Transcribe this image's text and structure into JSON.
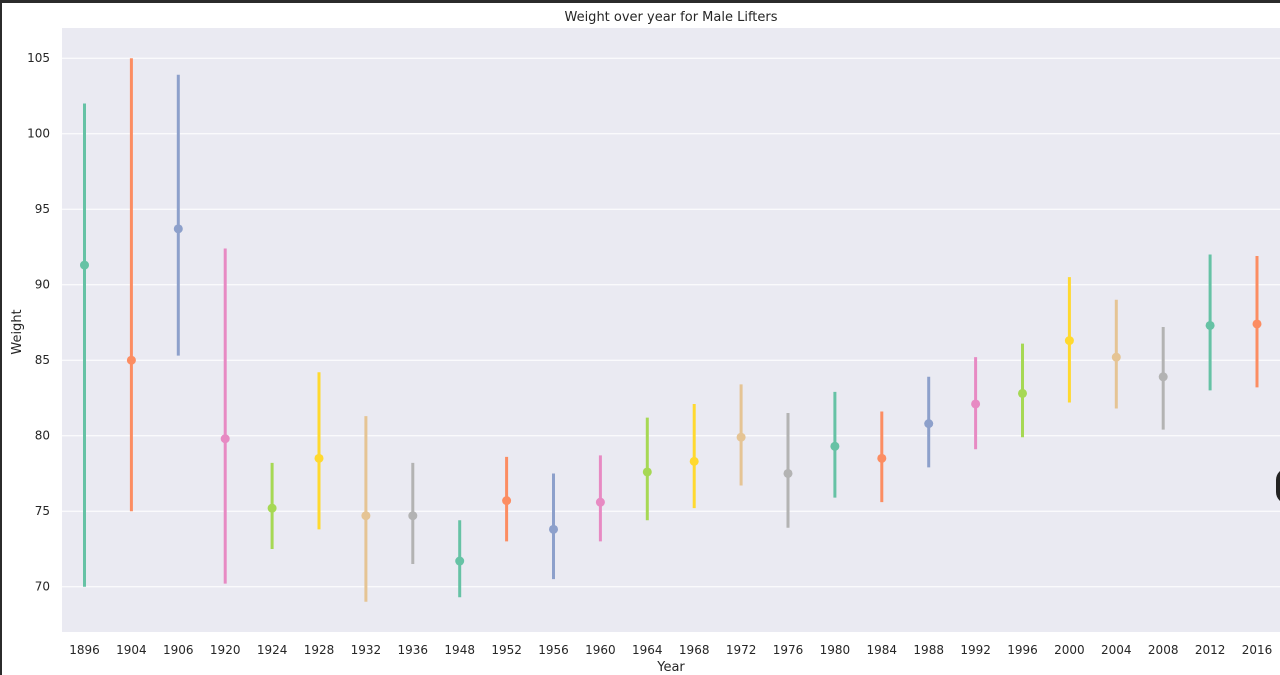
{
  "chart_data": {
    "type": "point",
    "title": "Weight over year for Male Lifters",
    "xlabel": "Year",
    "ylabel": "Weight",
    "ylim": [
      67,
      107
    ],
    "yticks": [
      70,
      75,
      80,
      85,
      90,
      95,
      100,
      105
    ],
    "grid": true,
    "categories": [
      "1896",
      "1904",
      "1906",
      "1920",
      "1924",
      "1928",
      "1932",
      "1936",
      "1948",
      "1952",
      "1956",
      "1960",
      "1964",
      "1968",
      "1972",
      "1976",
      "1980",
      "1984",
      "1988",
      "1992",
      "1996",
      "2000",
      "2004",
      "2008",
      "2012",
      "2016"
    ],
    "points": [
      {
        "year": "1896",
        "mean": 91.3,
        "low": 70.0,
        "high": 102.0,
        "color": "#66c2a5"
      },
      {
        "year": "1904",
        "mean": 85.0,
        "low": 75.0,
        "high": 105.0,
        "color": "#fc8d62"
      },
      {
        "year": "1906",
        "mean": 93.7,
        "low": 85.3,
        "high": 103.9,
        "color": "#8da0cb"
      },
      {
        "year": "1920",
        "mean": 79.8,
        "low": 70.2,
        "high": 92.4,
        "color": "#e78ac3"
      },
      {
        "year": "1924",
        "mean": 75.2,
        "low": 72.5,
        "high": 78.2,
        "color": "#a6d854"
      },
      {
        "year": "1928",
        "mean": 78.5,
        "low": 73.8,
        "high": 84.2,
        "color": "#ffd92f"
      },
      {
        "year": "1932",
        "mean": 74.7,
        "low": 69.0,
        "high": 81.3,
        "color": "#e5c494"
      },
      {
        "year": "1936",
        "mean": 74.7,
        "low": 71.5,
        "high": 78.2,
        "color": "#b3b3b3"
      },
      {
        "year": "1948",
        "mean": 71.7,
        "low": 69.3,
        "high": 74.4,
        "color": "#66c2a5"
      },
      {
        "year": "1952",
        "mean": 75.7,
        "low": 73.0,
        "high": 78.6,
        "color": "#fc8d62"
      },
      {
        "year": "1956",
        "mean": 73.8,
        "low": 70.5,
        "high": 77.5,
        "color": "#8da0cb"
      },
      {
        "year": "1960",
        "mean": 75.6,
        "low": 73.0,
        "high": 78.7,
        "color": "#e78ac3"
      },
      {
        "year": "1964",
        "mean": 77.6,
        "low": 74.4,
        "high": 81.2,
        "color": "#a6d854"
      },
      {
        "year": "1968",
        "mean": 78.3,
        "low": 75.2,
        "high": 82.1,
        "color": "#ffd92f"
      },
      {
        "year": "1972",
        "mean": 79.9,
        "low": 76.7,
        "high": 83.4,
        "color": "#e5c494"
      },
      {
        "year": "1976",
        "mean": 77.5,
        "low": 73.9,
        "high": 81.5,
        "color": "#b3b3b3"
      },
      {
        "year": "1980",
        "mean": 79.3,
        "low": 75.9,
        "high": 82.9,
        "color": "#66c2a5"
      },
      {
        "year": "1984",
        "mean": 78.5,
        "low": 75.6,
        "high": 81.6,
        "color": "#fc8d62"
      },
      {
        "year": "1988",
        "mean": 80.8,
        "low": 77.9,
        "high": 83.9,
        "color": "#8da0cb"
      },
      {
        "year": "1992",
        "mean": 82.1,
        "low": 79.1,
        "high": 85.2,
        "color": "#e78ac3"
      },
      {
        "year": "1996",
        "mean": 82.8,
        "low": 79.9,
        "high": 86.1,
        "color": "#a6d854"
      },
      {
        "year": "2000",
        "mean": 86.3,
        "low": 82.2,
        "high": 90.5,
        "color": "#ffd92f"
      },
      {
        "year": "2004",
        "mean": 85.2,
        "low": 81.8,
        "high": 89.0,
        "color": "#e5c494"
      },
      {
        "year": "2008",
        "mean": 83.9,
        "low": 80.4,
        "high": 87.2,
        "color": "#b3b3b3"
      },
      {
        "year": "2012",
        "mean": 87.3,
        "low": 83.0,
        "high": 92.0,
        "color": "#66c2a5"
      },
      {
        "year": "2016",
        "mean": 87.4,
        "low": 83.2,
        "high": 91.9,
        "color": "#fc8d62"
      }
    ]
  },
  "colors": {
    "plot_background": "#eaeaf2",
    "grid": "#ffffff",
    "text": "#262626"
  }
}
